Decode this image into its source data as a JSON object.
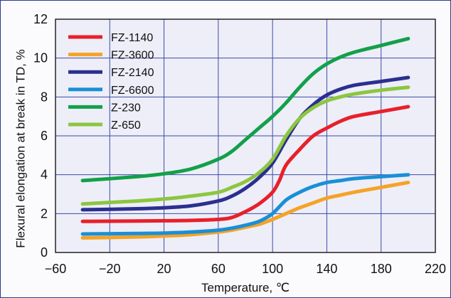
{
  "chart_data": {
    "type": "line",
    "xlabel": "Temperature, ℃",
    "ylabel": "Flexural elongation at break in TD, %",
    "xlim": [
      -60,
      220
    ],
    "ylim": [
      0,
      12
    ],
    "xticks": [
      -60,
      -20,
      20,
      60,
      100,
      140,
      180,
      220
    ],
    "xtick_labels": [
      "−60",
      "−20",
      "20",
      "60",
      "100",
      "140",
      "180",
      "220"
    ],
    "yticks": [
      0,
      2,
      4,
      6,
      8,
      10,
      12
    ],
    "ytick_labels": [
      "0",
      "2",
      "4",
      "6",
      "8",
      "10",
      "12"
    ],
    "grid": true,
    "legend_position": "top-left",
    "series": [
      {
        "name": "FZ-1140",
        "color": "#e8202a",
        "points": [
          [
            -40,
            1.6
          ],
          [
            0,
            1.62
          ],
          [
            20,
            1.63
          ],
          [
            40,
            1.65
          ],
          [
            60,
            1.7
          ],
          [
            70,
            1.8
          ],
          [
            80,
            2.1
          ],
          [
            90,
            2.5
          ],
          [
            100,
            3.1
          ],
          [
            105,
            3.7
          ],
          [
            110,
            4.5
          ],
          [
            120,
            5.3
          ],
          [
            130,
            6.0
          ],
          [
            140,
            6.4
          ],
          [
            150,
            6.75
          ],
          [
            160,
            7.0
          ],
          [
            180,
            7.25
          ],
          [
            200,
            7.5
          ]
        ]
      },
      {
        "name": "FZ-3600",
        "color": "#f5a327",
        "points": [
          [
            -40,
            0.75
          ],
          [
            0,
            0.8
          ],
          [
            20,
            0.85
          ],
          [
            40,
            0.92
          ],
          [
            60,
            1.05
          ],
          [
            70,
            1.15
          ],
          [
            80,
            1.3
          ],
          [
            90,
            1.45
          ],
          [
            100,
            1.7
          ],
          [
            110,
            2.0
          ],
          [
            120,
            2.3
          ],
          [
            130,
            2.55
          ],
          [
            140,
            2.8
          ],
          [
            150,
            2.95
          ],
          [
            160,
            3.1
          ],
          [
            180,
            3.35
          ],
          [
            200,
            3.6
          ]
        ]
      },
      {
        "name": "FZ-2140",
        "color": "#2b2f8f",
        "points": [
          [
            -40,
            2.2
          ],
          [
            0,
            2.25
          ],
          [
            20,
            2.3
          ],
          [
            40,
            2.4
          ],
          [
            60,
            2.65
          ],
          [
            70,
            2.9
          ],
          [
            80,
            3.3
          ],
          [
            90,
            3.85
          ],
          [
            100,
            4.6
          ],
          [
            110,
            5.8
          ],
          [
            120,
            6.9
          ],
          [
            130,
            7.6
          ],
          [
            140,
            8.1
          ],
          [
            150,
            8.4
          ],
          [
            160,
            8.6
          ],
          [
            180,
            8.8
          ],
          [
            200,
            9.0
          ]
        ]
      },
      {
        "name": "FZ-6600",
        "color": "#1a8fd6",
        "points": [
          [
            -40,
            0.95
          ],
          [
            0,
            0.98
          ],
          [
            20,
            1.0
          ],
          [
            40,
            1.05
          ],
          [
            60,
            1.15
          ],
          [
            70,
            1.25
          ],
          [
            80,
            1.4
          ],
          [
            90,
            1.6
          ],
          [
            100,
            2.0
          ],
          [
            110,
            2.7
          ],
          [
            120,
            3.1
          ],
          [
            130,
            3.4
          ],
          [
            140,
            3.6
          ],
          [
            150,
            3.7
          ],
          [
            160,
            3.8
          ],
          [
            180,
            3.9
          ],
          [
            200,
            4.0
          ]
        ]
      },
      {
        "name": "Z-230",
        "color": "#13a04a",
        "points": [
          [
            -40,
            3.7
          ],
          [
            0,
            3.9
          ],
          [
            20,
            4.05
          ],
          [
            40,
            4.3
          ],
          [
            60,
            4.8
          ],
          [
            70,
            5.2
          ],
          [
            80,
            5.8
          ],
          [
            90,
            6.4
          ],
          [
            100,
            7.0
          ],
          [
            110,
            7.7
          ],
          [
            120,
            8.5
          ],
          [
            130,
            9.2
          ],
          [
            140,
            9.7
          ],
          [
            150,
            10.05
          ],
          [
            160,
            10.3
          ],
          [
            180,
            10.65
          ],
          [
            200,
            11.0
          ]
        ]
      },
      {
        "name": "Z-650",
        "color": "#8cc63f",
        "points": [
          [
            -40,
            2.5
          ],
          [
            0,
            2.65
          ],
          [
            20,
            2.75
          ],
          [
            40,
            2.9
          ],
          [
            60,
            3.1
          ],
          [
            70,
            3.35
          ],
          [
            80,
            3.65
          ],
          [
            90,
            4.1
          ],
          [
            100,
            4.8
          ],
          [
            110,
            6.0
          ],
          [
            120,
            6.9
          ],
          [
            130,
            7.45
          ],
          [
            140,
            7.8
          ],
          [
            150,
            8.0
          ],
          [
            160,
            8.15
          ],
          [
            180,
            8.35
          ],
          [
            200,
            8.5
          ]
        ]
      }
    ]
  }
}
